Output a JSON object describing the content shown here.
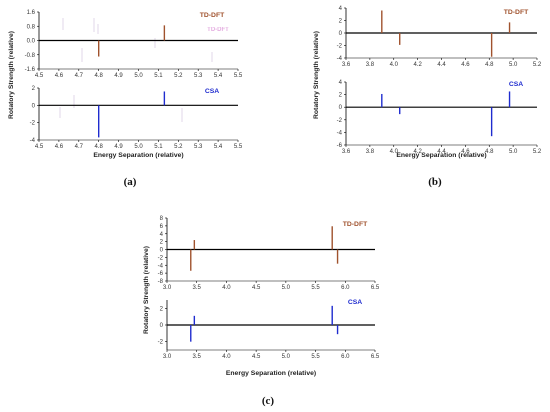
{
  "colors": {
    "tddft": "#a0522d",
    "csa": "#1f2ccf",
    "axis": "#000000",
    "ghost": "#d98bd4"
  },
  "chart_data": [
    {
      "id": "a",
      "panel_label": "(a)",
      "type": "bar",
      "xlabel": "Energy Separation (relative)",
      "ylabel": "Rotatory Strength (relative)",
      "xlim": [
        4.5,
        5.5
      ],
      "xticks": [
        "4.5",
        "4.6",
        "4.7",
        "4.8",
        "4.9",
        "5.0",
        "5.1",
        "5.2",
        "5.3",
        "5.4",
        "5.5"
      ],
      "artifacts": [
        {
          "text": "TD-DFT",
          "note": "faint duplicated legend text"
        }
      ],
      "subplots": [
        {
          "legend": "TD-DFT",
          "color": "tddft",
          "ylim": [
            -1.6,
            1.6
          ],
          "yticks": [
            "1.6",
            "0.8",
            "0.0",
            "-0.8",
            "-1.6"
          ],
          "x": [
            4.8,
            5.13
          ],
          "values": [
            -0.9,
            0.85
          ]
        },
        {
          "legend": "CSA",
          "color": "csa",
          "ylim": [
            -4,
            2
          ],
          "yticks": [
            "2",
            "0",
            "-2",
            "-4"
          ],
          "x": [
            4.8,
            5.13
          ],
          "values": [
            -3.7,
            1.6
          ]
        }
      ]
    },
    {
      "id": "b",
      "panel_label": "(b)",
      "type": "bar",
      "xlabel": "Energy Separation (relative)",
      "ylabel": "Rotatory Strength (relative)",
      "xlim": [
        3.6,
        5.2
      ],
      "xticks": [
        "3.6",
        "3.8",
        "4.0",
        "4.2",
        "4.4",
        "4.6",
        "4.8",
        "5.0",
        "5.2"
      ],
      "subplots": [
        {
          "legend": "TD-DFT",
          "color": "tddft",
          "ylim": [
            -4,
            4
          ],
          "yticks": [
            "4",
            "2",
            "0",
            "-2",
            "-4"
          ],
          "x": [
            3.9,
            4.05,
            4.82,
            4.97
          ],
          "values": [
            3.6,
            -1.9,
            -3.8,
            1.7
          ]
        },
        {
          "legend": "CSA",
          "color": "csa",
          "ylim": [
            -6,
            4
          ],
          "yticks": [
            "4",
            "2",
            "0",
            "-2",
            "-4",
            "-6"
          ],
          "x": [
            3.9,
            4.05,
            4.82,
            4.97
          ],
          "values": [
            2.1,
            -1.1,
            -4.6,
            2.5
          ]
        }
      ]
    },
    {
      "id": "c",
      "panel_label": "(c)",
      "type": "bar",
      "xlabel": "Energy Separation (relative)",
      "ylabel": "Rotatory Strength (relative)",
      "xlim": [
        3.0,
        6.5
      ],
      "xticks": [
        "3.0",
        "3.5",
        "4.0",
        "4.5",
        "5.0",
        "5.5",
        "6.0",
        "6.5"
      ],
      "subplots": [
        {
          "legend": "TD-DFT",
          "color": "tddft",
          "ylim": [
            -8,
            8
          ],
          "yticks": [
            "8",
            "6",
            "4",
            "2",
            "0",
            "-2",
            "-4",
            "-6",
            "-8"
          ],
          "x": [
            3.4,
            3.46,
            5.78,
            5.87
          ],
          "values": [
            -5.4,
            2.4,
            5.9,
            -3.6
          ]
        },
        {
          "legend": "CSA",
          "color": "csa",
          "ylim": [
            -3,
            3
          ],
          "yticks": [
            "2",
            "0",
            "-2"
          ],
          "x": [
            3.4,
            3.46,
            5.78,
            5.87
          ],
          "values": [
            -2.0,
            1.1,
            2.3,
            -1.1
          ]
        }
      ]
    }
  ]
}
